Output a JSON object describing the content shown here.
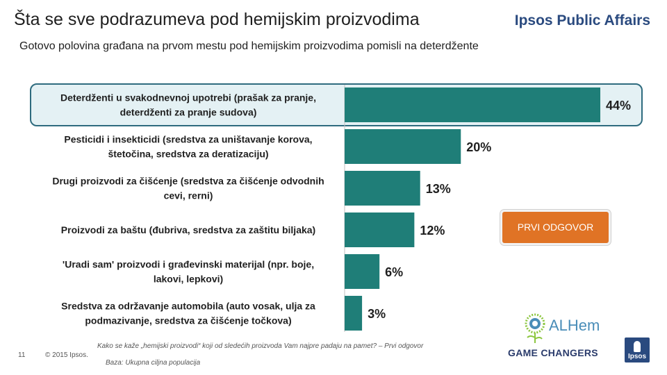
{
  "header": {
    "title": "Šta se sve podrazumeva pod hemijskim proizvodima",
    "brand": "Ipsos Public Affairs",
    "subtitle": "Gotovo polovina građana na prvom mestu pod hemijskim proizvodima pomisli na deterdžente"
  },
  "callout": {
    "label": "PRVI ODGOVOR"
  },
  "chart_data": {
    "type": "bar",
    "orientation": "horizontal",
    "title": "Šta se sve podrazumeva pod hemijskim proizvodima",
    "xlabel": "",
    "ylabel": "",
    "xlim": [
      0,
      44
    ],
    "bar_color": "#1f7e78",
    "highlight_color": "#2e6b7e",
    "highlight_fill": "#e4f1f4",
    "categories": [
      [
        "Deterdženti u svakodnevnoj upotrebi (prašak za pranje,",
        "deterdženti za pranje sudova)"
      ],
      [
        "Pesticidi i insekticidi (sredstva za uništavanje korova,",
        "štetočina, sredstva za deratizaciju)"
      ],
      [
        "Drugi proizvodi za čišćenje (sredstva za čišćenje odvodnih",
        "cevi, rerni)"
      ],
      [
        "Proizvodi za baštu (đubriva, sredstva za zaštitu biljaka)"
      ],
      [
        "'Uradi sam' proizvodi i građevinski materijal (npr. boje,",
        "lakovi, lepkovi)"
      ],
      [
        "Sredstva za održavanje automobila (auto vosak, ulja za",
        "podmazivanje, sredstva za čišćenje točkova)"
      ]
    ],
    "values": [
      44,
      20,
      13,
      12,
      6,
      3
    ],
    "value_labels": [
      "44%",
      "20%",
      "13%",
      "12%",
      "6%",
      "3%"
    ]
  },
  "footer": {
    "page_number": "11",
    "copyright": "© 2015 Ipsos.",
    "question": "Kako se kaže „hemijski proizvodi“ koji od sledećih proizvoda Vam najpre padaju na pamet? – Prvi odgovor",
    "base": "Baza: Ukupna ciljna populacija"
  },
  "logos": {
    "alhem": "ALHem",
    "game_changers": "GAME CHANGERS",
    "ipsos": "Ipsos"
  }
}
